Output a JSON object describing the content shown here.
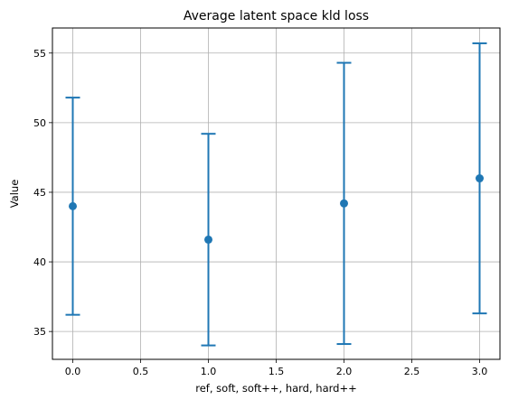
{
  "chart_data": {
    "type": "scatter",
    "title": "Average latent space kld loss",
    "xlabel": "ref, soft, soft++, hard, hard++",
    "ylabel": "Value",
    "xlim": [
      -0.15,
      3.15
    ],
    "ylim": [
      33.0,
      56.8
    ],
    "xticks": [
      0.0,
      0.5,
      1.0,
      1.5,
      2.0,
      2.5,
      3.0
    ],
    "xtick_labels": [
      "0.0",
      "0.5",
      "1.0",
      "1.5",
      "2.0",
      "2.5",
      "3.0"
    ],
    "yticks": [
      35,
      40,
      45,
      50,
      55
    ],
    "ytick_labels": [
      "35",
      "40",
      "45",
      "50",
      "55"
    ],
    "grid": true,
    "series": [
      {
        "x": [
          0,
          1,
          2,
          3
        ],
        "y": [
          44.0,
          41.6,
          44.2,
          46.0
        ],
        "err_low": [
          36.2,
          34.0,
          34.1,
          36.3
        ],
        "err_high": [
          51.8,
          49.2,
          54.3,
          55.7
        ],
        "color": "#1f77b4"
      }
    ]
  }
}
